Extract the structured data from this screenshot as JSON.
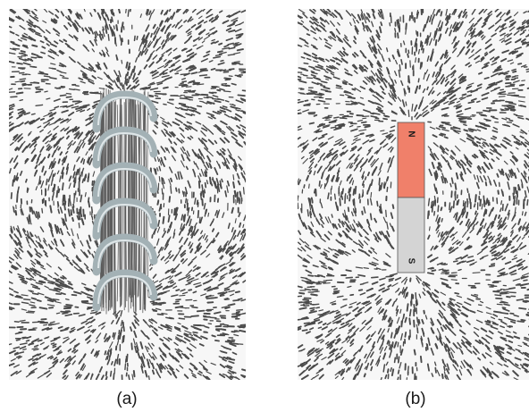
{
  "panels": [
    {
      "caption": "(a)",
      "subject": "solenoid-coil",
      "filings_color": "#4a4a4a",
      "coil_color": "#a3b1b5",
      "turns": 6
    },
    {
      "caption": "(b)",
      "subject": "bar-magnet",
      "filings_color": "#4a4a4a",
      "north_label": "N",
      "south_label": "S",
      "north_color": "#f0806a",
      "south_color": "#d4d4d4"
    }
  ]
}
